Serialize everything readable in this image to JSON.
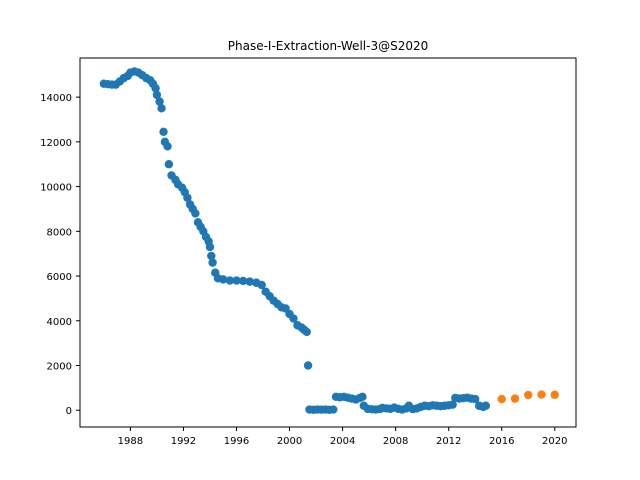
{
  "chart_data": {
    "type": "scatter",
    "title": "Phase-I-Extraction-Well-3@S2020",
    "xlabel": "",
    "ylabel": "",
    "xlim": [
      1984.2,
      2021.6
    ],
    "ylim": [
      -750,
      15750
    ],
    "x_ticks": [
      1988,
      1992,
      1996,
      2000,
      2004,
      2008,
      2012,
      2016,
      2020
    ],
    "y_ticks": [
      0,
      2000,
      4000,
      6000,
      8000,
      10000,
      12000,
      14000
    ],
    "grid": false,
    "legend": "none",
    "series": [
      {
        "color": "#1f77b4",
        "points": [
          [
            1986.0,
            14600
          ],
          [
            1986.3,
            14580
          ],
          [
            1986.6,
            14560
          ],
          [
            1986.9,
            14560
          ],
          [
            1987.2,
            14700
          ],
          [
            1987.5,
            14850
          ],
          [
            1987.8,
            14950
          ],
          [
            1988.0,
            15100
          ],
          [
            1988.3,
            15150
          ],
          [
            1988.6,
            15100
          ],
          [
            1988.9,
            14980
          ],
          [
            1989.2,
            14850
          ],
          [
            1989.5,
            14750
          ],
          [
            1989.7,
            14600
          ],
          [
            1989.9,
            14400
          ],
          [
            1990.0,
            14100
          ],
          [
            1990.2,
            13800
          ],
          [
            1990.35,
            13500
          ],
          [
            1990.5,
            12450
          ],
          [
            1990.6,
            12000
          ],
          [
            1990.8,
            11800
          ],
          [
            1990.9,
            11000
          ],
          [
            1991.1,
            10500
          ],
          [
            1991.4,
            10300
          ],
          [
            1991.6,
            10100
          ],
          [
            1991.9,
            9950
          ],
          [
            1992.1,
            9750
          ],
          [
            1992.3,
            9500
          ],
          [
            1992.5,
            9200
          ],
          [
            1992.7,
            9000
          ],
          [
            1992.9,
            8800
          ],
          [
            1993.1,
            8400
          ],
          [
            1993.3,
            8200
          ],
          [
            1993.5,
            8000
          ],
          [
            1993.7,
            7750
          ],
          [
            1993.9,
            7550
          ],
          [
            1994.0,
            7300
          ],
          [
            1994.1,
            6900
          ],
          [
            1994.2,
            6600
          ],
          [
            1994.4,
            6150
          ],
          [
            1994.6,
            5900
          ],
          [
            1995.0,
            5850
          ],
          [
            1995.5,
            5800
          ],
          [
            1996.0,
            5800
          ],
          [
            1996.5,
            5780
          ],
          [
            1997.0,
            5750
          ],
          [
            1997.5,
            5700
          ],
          [
            1997.9,
            5600
          ],
          [
            1998.2,
            5300
          ],
          [
            1998.5,
            5100
          ],
          [
            1998.8,
            4900
          ],
          [
            1999.1,
            4750
          ],
          [
            1999.4,
            4600
          ],
          [
            1999.7,
            4550
          ],
          [
            2000.0,
            4300
          ],
          [
            2000.3,
            4100
          ],
          [
            2000.6,
            3800
          ],
          [
            2000.9,
            3700
          ],
          [
            2001.1,
            3600
          ],
          [
            2001.3,
            3500
          ],
          [
            2001.4,
            2000
          ],
          [
            2001.5,
            30
          ],
          [
            2001.8,
            20
          ],
          [
            2002.1,
            30
          ],
          [
            2002.4,
            25
          ],
          [
            2002.7,
            30
          ],
          [
            2003.0,
            20
          ],
          [
            2003.3,
            30
          ],
          [
            2003.5,
            600
          ],
          [
            2003.8,
            580
          ],
          [
            2004.1,
            600
          ],
          [
            2004.4,
            560
          ],
          [
            2004.7,
            520
          ],
          [
            2005.0,
            480
          ],
          [
            2005.3,
            550
          ],
          [
            2005.5,
            600
          ],
          [
            2005.6,
            200
          ],
          [
            2005.9,
            60
          ],
          [
            2006.2,
            40
          ],
          [
            2006.5,
            30
          ],
          [
            2006.8,
            50
          ],
          [
            2007.0,
            100
          ],
          [
            2007.3,
            80
          ],
          [
            2007.6,
            60
          ],
          [
            2007.9,
            120
          ],
          [
            2008.2,
            60
          ],
          [
            2008.5,
            30
          ],
          [
            2008.8,
            80
          ],
          [
            2009.0,
            200
          ],
          [
            2009.3,
            50
          ],
          [
            2009.6,
            80
          ],
          [
            2009.9,
            150
          ],
          [
            2010.2,
            200
          ],
          [
            2010.5,
            180
          ],
          [
            2010.8,
            220
          ],
          [
            2011.1,
            200
          ],
          [
            2011.4,
            180
          ],
          [
            2011.7,
            200
          ],
          [
            2012.0,
            220
          ],
          [
            2012.3,
            250
          ],
          [
            2012.5,
            550
          ],
          [
            2012.8,
            520
          ],
          [
            2013.1,
            540
          ],
          [
            2013.4,
            560
          ],
          [
            2013.7,
            520
          ],
          [
            2014.0,
            500
          ],
          [
            2014.3,
            200
          ],
          [
            2014.6,
            150
          ],
          [
            2014.8,
            200
          ]
        ]
      },
      {
        "color": "#ff7f0e",
        "points": [
          [
            2016,
            500
          ],
          [
            2017,
            520
          ],
          [
            2018,
            680
          ],
          [
            2019,
            700
          ],
          [
            2020,
            690
          ]
        ]
      }
    ]
  }
}
